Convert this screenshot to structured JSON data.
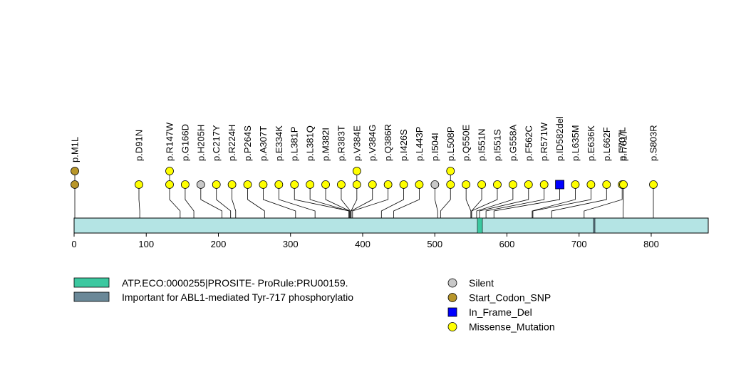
{
  "protein": {
    "length": 877,
    "domains": [
      {
        "name": "ATP.ECO:0000255|PROSITE-ProRule:PRU00159.",
        "start": 559,
        "end": 566,
        "color": "#3cc8a0"
      },
      {
        "name": "Important for ABL1-mediated Tyr-717 phosphorylatio",
        "start": 720,
        "end": 722,
        "color": "#6a8898"
      }
    ],
    "bar_color": "#b4e4e4"
  },
  "axis": {
    "ticks": [
      0,
      100,
      200,
      300,
      400,
      500,
      600,
      700,
      800
    ]
  },
  "mutations": [
    {
      "label": "p.M1L",
      "pos": 1,
      "type": "Start_Codon_SNP",
      "count": 2
    },
    {
      "label": "p.D91N",
      "pos": 91,
      "type": "Missense_Mutation",
      "count": 1
    },
    {
      "label": "p.R147W",
      "pos": 147,
      "type": "Missense_Mutation",
      "count": 2
    },
    {
      "label": "p.G166D",
      "pos": 166,
      "type": "Missense_Mutation",
      "count": 1
    },
    {
      "label": "p.H205H",
      "pos": 205,
      "type": "Silent",
      "count": 1
    },
    {
      "label": "p.C217Y",
      "pos": 217,
      "type": "Missense_Mutation",
      "count": 1
    },
    {
      "label": "p.R224H",
      "pos": 224,
      "type": "Missense_Mutation",
      "count": 1
    },
    {
      "label": "p.P264S",
      "pos": 264,
      "type": "Missense_Mutation",
      "count": 1
    },
    {
      "label": "p.A307T",
      "pos": 307,
      "type": "Missense_Mutation",
      "count": 1
    },
    {
      "label": "p.E334K",
      "pos": 334,
      "type": "Missense_Mutation",
      "count": 1
    },
    {
      "label": "p.L381P",
      "pos": 381,
      "type": "Missense_Mutation",
      "count": 1
    },
    {
      "label": "p.L381Q",
      "pos": 381,
      "type": "Missense_Mutation",
      "count": 1
    },
    {
      "label": "p.M382I",
      "pos": 382,
      "type": "Missense_Mutation",
      "count": 1
    },
    {
      "label": "p.R383T",
      "pos": 383,
      "type": "Missense_Mutation",
      "count": 1
    },
    {
      "label": "p.V384E",
      "pos": 384,
      "type": "Missense_Mutation",
      "count": 2
    },
    {
      "label": "p.V384G",
      "pos": 384,
      "type": "Missense_Mutation",
      "count": 1
    },
    {
      "label": "p.Q386R",
      "pos": 386,
      "type": "Missense_Mutation",
      "count": 1
    },
    {
      "label": "p.I426S",
      "pos": 426,
      "type": "Missense_Mutation",
      "count": 1
    },
    {
      "label": "p.L443P",
      "pos": 443,
      "type": "Missense_Mutation",
      "count": 1
    },
    {
      "label": "p.I504I",
      "pos": 504,
      "type": "Silent",
      "count": 1
    },
    {
      "label": "p.L508P",
      "pos": 508,
      "type": "Missense_Mutation",
      "count": 2
    },
    {
      "label": "p.Q550E",
      "pos": 550,
      "type": "Missense_Mutation",
      "count": 1
    },
    {
      "label": "p.I551N",
      "pos": 551,
      "type": "Missense_Mutation",
      "count": 1
    },
    {
      "label": "p.I551S",
      "pos": 551,
      "type": "Missense_Mutation",
      "count": 1
    },
    {
      "label": "p.G558A",
      "pos": 558,
      "type": "Missense_Mutation",
      "count": 1
    },
    {
      "label": "p.F562C",
      "pos": 562,
      "type": "Missense_Mutation",
      "count": 1
    },
    {
      "label": "p.R571W",
      "pos": 571,
      "type": "Missense_Mutation",
      "count": 1
    },
    {
      "label": "p.ID582del",
      "pos": 582,
      "type": "In_Frame_Del",
      "count": 1
    },
    {
      "label": "p.L635M",
      "pos": 635,
      "type": "Missense_Mutation",
      "count": 1
    },
    {
      "label": "p.E636K",
      "pos": 636,
      "type": "Missense_Mutation",
      "count": 1
    },
    {
      "label": "p.L662F",
      "pos": 662,
      "type": "Missense_Mutation",
      "count": 1
    },
    {
      "label": "p.F707L",
      "pos": 707,
      "type": "Missense_Mutation",
      "count": 1
    },
    {
      "label": "p.I761T",
      "pos": 761,
      "type": "Missense_Mutation",
      "count": 1
    },
    {
      "label": "p.S803R",
      "pos": 803,
      "type": "Missense_Mutation",
      "count": 1
    }
  ],
  "legend": {
    "domains": [
      {
        "label": "ATP.ECO:0000255|PROSITE- ProRule:PRU00159.",
        "color": "#3cc8a0"
      },
      {
        "label": "Important for ABL1-mediated Tyr-717 phosphorylatio",
        "color": "#6a8898"
      }
    ],
    "types": [
      {
        "label": "Silent",
        "shape": "circle",
        "color": "#c8c8c8"
      },
      {
        "label": "Start_Codon_SNP",
        "shape": "circle",
        "color": "#b8962a"
      },
      {
        "label": "In_Frame_Del",
        "shape": "square",
        "color": "#0000ff"
      },
      {
        "label": "Missense_Mutation",
        "shape": "circle",
        "color": "#ffff00"
      }
    ]
  },
  "type_colors": {
    "Silent": "#c8c8c8",
    "Start_Codon_SNP": "#b8962a",
    "In_Frame_Del": "#0000ff",
    "Missense_Mutation": "#ffff00"
  }
}
